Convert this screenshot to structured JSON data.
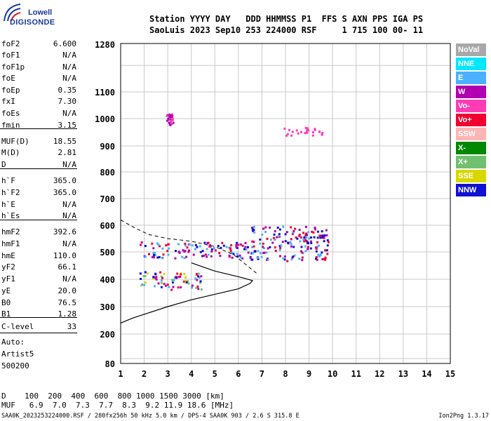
{
  "logo": {
    "line1": "Lowell",
    "line2": "DIGISONDE",
    "icon": "digisonde-logo-icon"
  },
  "header": {
    "labels": "Station YYYY DAY   DDD HHMMSS P1  FFS S AXN PPS IGA PS",
    "values": "SaoLuis 2023 Sep10 253 224000 RSF     1 715 100 00- 11"
  },
  "params": [
    {
      "name": "foF2",
      "value": "6.600"
    },
    {
      "name": "foF1",
      "value": "N/A"
    },
    {
      "name": "foF1p",
      "value": "N/A"
    },
    {
      "name": "foE",
      "value": "N/A"
    },
    {
      "name": "foEp",
      "value": "0.35"
    },
    {
      "name": "fxI",
      "value": "7.30"
    },
    {
      "name": "foEs",
      "value": "N/A"
    },
    {
      "name": "fmin",
      "value": "3.15"
    },
    {
      "name": "MUF(D)",
      "value": "18.55"
    },
    {
      "name": "M(D)",
      "value": "2.81"
    },
    {
      "name": "D",
      "value": "N/A"
    },
    {
      "name": "h`F",
      "value": "365.0"
    },
    {
      "name": "h`F2",
      "value": "365.0"
    },
    {
      "name": "h`E",
      "value": "N/A"
    },
    {
      "name": "h`Es",
      "value": "N/A"
    },
    {
      "name": "hmF2",
      "value": "392.6"
    },
    {
      "name": "hmF1",
      "value": "N/A"
    },
    {
      "name": "hmE",
      "value": "110.0"
    },
    {
      "name": "yF2",
      "value": "66.1"
    },
    {
      "name": "yF1",
      "value": "N/A"
    },
    {
      "name": "yE",
      "value": "20.0"
    },
    {
      "name": "B0",
      "value": "76.5"
    },
    {
      "name": "B1",
      "value": "1.28"
    },
    {
      "name": "C-level",
      "value": "33"
    }
  ],
  "auto": {
    "line1": "Auto:",
    "line2": "Artist5",
    "line3": "500200"
  },
  "legend": [
    {
      "label": "NoVal",
      "color": "#a8a8a8"
    },
    {
      "label": "NNE",
      "color": "#00e8ff"
    },
    {
      "label": "E",
      "color": "#4ab0ff"
    },
    {
      "label": "W",
      "color": "#b000b0"
    },
    {
      "label": "Vo-",
      "color": "#ff3cb4"
    },
    {
      "label": "Vo+",
      "color": "#f00030"
    },
    {
      "label": "SSW",
      "color": "#ffb4b4"
    },
    {
      "label": "X-",
      "color": "#008800"
    },
    {
      "label": "X+",
      "color": "#70c070"
    },
    {
      "label": "SSE",
      "color": "#d8d800"
    },
    {
      "label": "NNW",
      "color": "#1010d0"
    }
  ],
  "footer": {
    "d_row": "D    100  200  400  600  800 1000 1500 3000 [km]",
    "muf_row": "MUF   6.9  7.0  7.3  7.7  8.3  9.2 11.9 18.6 [MHz]",
    "file_line": "SAA0K_2023253224000.RSF / 280fx256h 50 kHz 5.0 km / DPS-4 SAA0K 903 / 2.6 S 315.8 E",
    "version": "Ion2Png 1.3.17"
  },
  "chart_data": {
    "type": "scatter",
    "xlim": [
      1,
      15
    ],
    "ylim": [
      80,
      1280
    ],
    "x_ticks": [
      1,
      2,
      3,
      4,
      5,
      6,
      7,
      8,
      9,
      10,
      11,
      12,
      13,
      14,
      15
    ],
    "y_ticks": [
      80,
      200,
      300,
      400,
      500,
      600,
      700,
      800,
      900,
      1000,
      1100,
      1280
    ],
    "grid": true,
    "echo_clusters": [
      {
        "x": [
          1.8,
          4.5
        ],
        "y": [
          365,
          430
        ],
        "colors": [
          "#d8d800",
          "#1010d0",
          "#b000b0",
          "#4ab0ff",
          "#70c070",
          "#f00030"
        ]
      },
      {
        "x": [
          1.8,
          6.5
        ],
        "y": [
          480,
          540
        ],
        "colors": [
          "#b000b0",
          "#1010d0",
          "#4ab0ff",
          "#f00030"
        ]
      },
      {
        "x": [
          6.5,
          9.8
        ],
        "y": [
          470,
          600
        ],
        "colors": [
          "#f00030",
          "#4ab0ff",
          "#1010d0",
          "#b000b0"
        ]
      },
      {
        "x": [
          7.8,
          9.8
        ],
        "y": [
          940,
          970
        ],
        "colors": [
          "#ff3cb4"
        ]
      },
      {
        "x": [
          2.9,
          3.2
        ],
        "y": [
          980,
          1020
        ],
        "colors": [
          "#b000b0",
          "#ff3cb4"
        ]
      }
    ],
    "profile_curve": {
      "x": [
        1.0,
        1.5,
        2.0,
        3.0,
        4.0,
        5.0,
        6.0,
        6.5,
        6.6,
        6.2,
        5.0,
        4.0
      ],
      "y": [
        240,
        258,
        272,
        300,
        325,
        345,
        365,
        385,
        395,
        405,
        430,
        460
      ]
    },
    "dashed_curve": {
      "x": [
        1.0,
        1.6,
        2.2,
        3.0,
        4.0,
        5.0,
        5.8,
        6.3,
        6.8
      ],
      "y": [
        620,
        590,
        565,
        550,
        540,
        520,
        490,
        455,
        420
      ]
    }
  }
}
